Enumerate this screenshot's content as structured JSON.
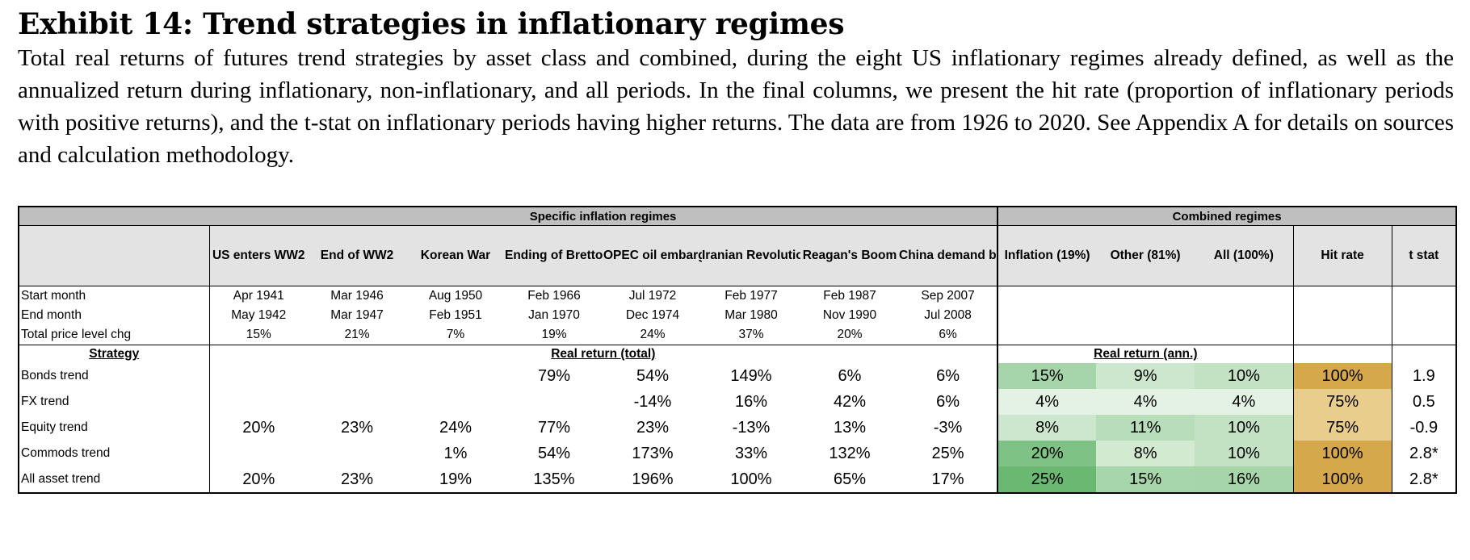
{
  "title": "Exhibit 14: Trend strategies in inflationary regimes",
  "description": "Total real returns of futures trend strategies by asset class and combined, during the eight US inflationary regimes already defined, as well as the annualized return during inflationary, non-inflationary, and all periods. In the final columns, we present the hit rate (proportion of inflationary periods with positive returns), and the t-stat on inflationary periods having higher returns. The data are from 1926 to 2020. See Appendix A for details on sources and calculation methodology.",
  "table": {
    "group_specific": "Specific inflation regimes",
    "group_combined": "Combined regimes",
    "regimes": [
      "US enters WW2",
      "End of WW2",
      "Korean War",
      "Ending of Bretton Woods",
      "OPEC oil embargo",
      "Iranian Revolution",
      "Reagan's Boom",
      "China demand boom"
    ],
    "combined_headers": [
      "Inflation (19%)",
      "Other (81%)",
      "All (100%)",
      "Hit rate",
      "t stat"
    ],
    "meta_rows": [
      {
        "label": "Start month",
        "values": [
          "Apr 1941",
          "Mar 1946",
          "Aug 1950",
          "Feb 1966",
          "Jul 1972",
          "Feb 1977",
          "Feb 1987",
          "Sep 2007"
        ]
      },
      {
        "label": "End month",
        "values": [
          "May 1942",
          "Mar 1947",
          "Feb 1951",
          "Jan 1970",
          "Dec 1974",
          "Mar 1980",
          "Nov 1990",
          "Jul 2008"
        ]
      },
      {
        "label": "Total price level chg",
        "values": [
          "15%",
          "21%",
          "7%",
          "19%",
          "24%",
          "37%",
          "20%",
          "6%"
        ]
      }
    ],
    "strategy_header": "Strategy",
    "real_return_total": "Real return (total)",
    "real_return_ann": "Real return (ann.)",
    "rows": [
      {
        "label": "Bonds trend",
        "regimes": [
          "",
          "",
          "",
          "79%",
          "54%",
          "149%",
          "6%",
          "6%"
        ],
        "combined": [
          "15%",
          "9%",
          "10%",
          "100%",
          "1.9"
        ]
      },
      {
        "label": "FX trend",
        "regimes": [
          "",
          "",
          "",
          "",
          "-14%",
          "16%",
          "42%",
          "6%"
        ],
        "combined": [
          "4%",
          "4%",
          "4%",
          "75%",
          "0.5"
        ]
      },
      {
        "label": "Equity trend",
        "regimes": [
          "20%",
          "23%",
          "24%",
          "77%",
          "23%",
          "-13%",
          "13%",
          "-3%"
        ],
        "combined": [
          "8%",
          "11%",
          "10%",
          "75%",
          "-0.9"
        ]
      },
      {
        "label": "Commods trend",
        "regimes": [
          "",
          "",
          "1%",
          "54%",
          "173%",
          "33%",
          "132%",
          "25%"
        ],
        "combined": [
          "20%",
          "8%",
          "10%",
          "100%",
          "2.8*"
        ]
      },
      {
        "label": "All asset trend",
        "regimes": [
          "20%",
          "23%",
          "19%",
          "135%",
          "196%",
          "100%",
          "65%",
          "17%"
        ],
        "combined": [
          "25%",
          "15%",
          "16%",
          "100%",
          "2.8*"
        ]
      }
    ],
    "cell_colors": [
      [
        "#a6d5a9",
        "#cde7ce",
        "#c3e2c4",
        "#d4a84b",
        "#ffffff"
      ],
      [
        "#e4f2e4",
        "#e4f2e4",
        "#e4f2e4",
        "#e8cd8c",
        "#ffffff"
      ],
      [
        "#cde7ce",
        "#b8ddba",
        "#c3e2c4",
        "#e8cd8c",
        "#ffffff"
      ],
      [
        "#7fc285",
        "#d2eacf",
        "#c3e2c4",
        "#d4a84b",
        "#ffffff"
      ],
      [
        "#6bb873",
        "#a8d6ab",
        "#a6d5a9",
        "#d4a84b",
        "#ffffff"
      ]
    ]
  }
}
